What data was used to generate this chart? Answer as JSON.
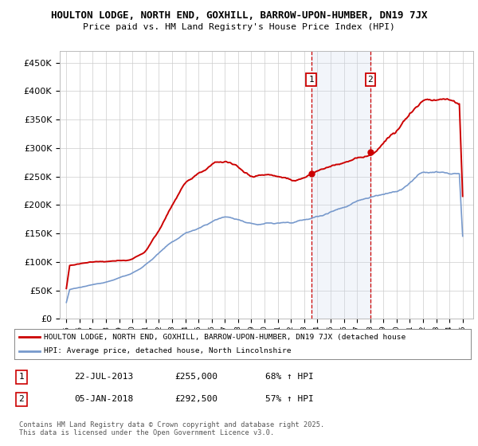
{
  "title_line1": "HOULTON LODGE, NORTH END, GOXHILL, BARROW-UPON-HUMBER, DN19 7JX",
  "title_line2": "Price paid vs. HM Land Registry's House Price Index (HPI)",
  "background_color": "#ffffff",
  "plot_bg_color": "#ffffff",
  "grid_color": "#cccccc",
  "hpi_color": "#7799cc",
  "price_color": "#cc0000",
  "sale1_date": "22-JUL-2013",
  "sale1_price": 255000,
  "sale1_label": "68% ↑ HPI",
  "sale2_date": "05-JAN-2018",
  "sale2_price": 292500,
  "sale2_label": "57% ↑ HPI",
  "sale1_x": 2013.55,
  "sale2_x": 2018.02,
  "xmin": 1994.5,
  "xmax": 2025.8,
  "ymin": 0,
  "ymax": 470000,
  "yticks": [
    0,
    50000,
    100000,
    150000,
    200000,
    250000,
    300000,
    350000,
    400000,
    450000
  ],
  "xticks": [
    1995,
    1996,
    1997,
    1998,
    1999,
    2000,
    2001,
    2002,
    2003,
    2004,
    2005,
    2006,
    2007,
    2008,
    2009,
    2010,
    2011,
    2012,
    2013,
    2014,
    2015,
    2016,
    2017,
    2018,
    2019,
    2020,
    2021,
    2022,
    2023,
    2024,
    2025
  ],
  "legend_property_label": "HOULTON LODGE, NORTH END, GOXHILL, BARROW-UPON-HUMBER, DN19 7JX (detached house",
  "legend_hpi_label": "HPI: Average price, detached house, North Lincolnshire",
  "footer_text": "Contains HM Land Registry data © Crown copyright and database right 2025.\nThis data is licensed under the Open Government Licence v3.0.",
  "marker_box_color": "#cc0000",
  "shade_color": "#ccd8ee",
  "vline_color": "#cc0000"
}
